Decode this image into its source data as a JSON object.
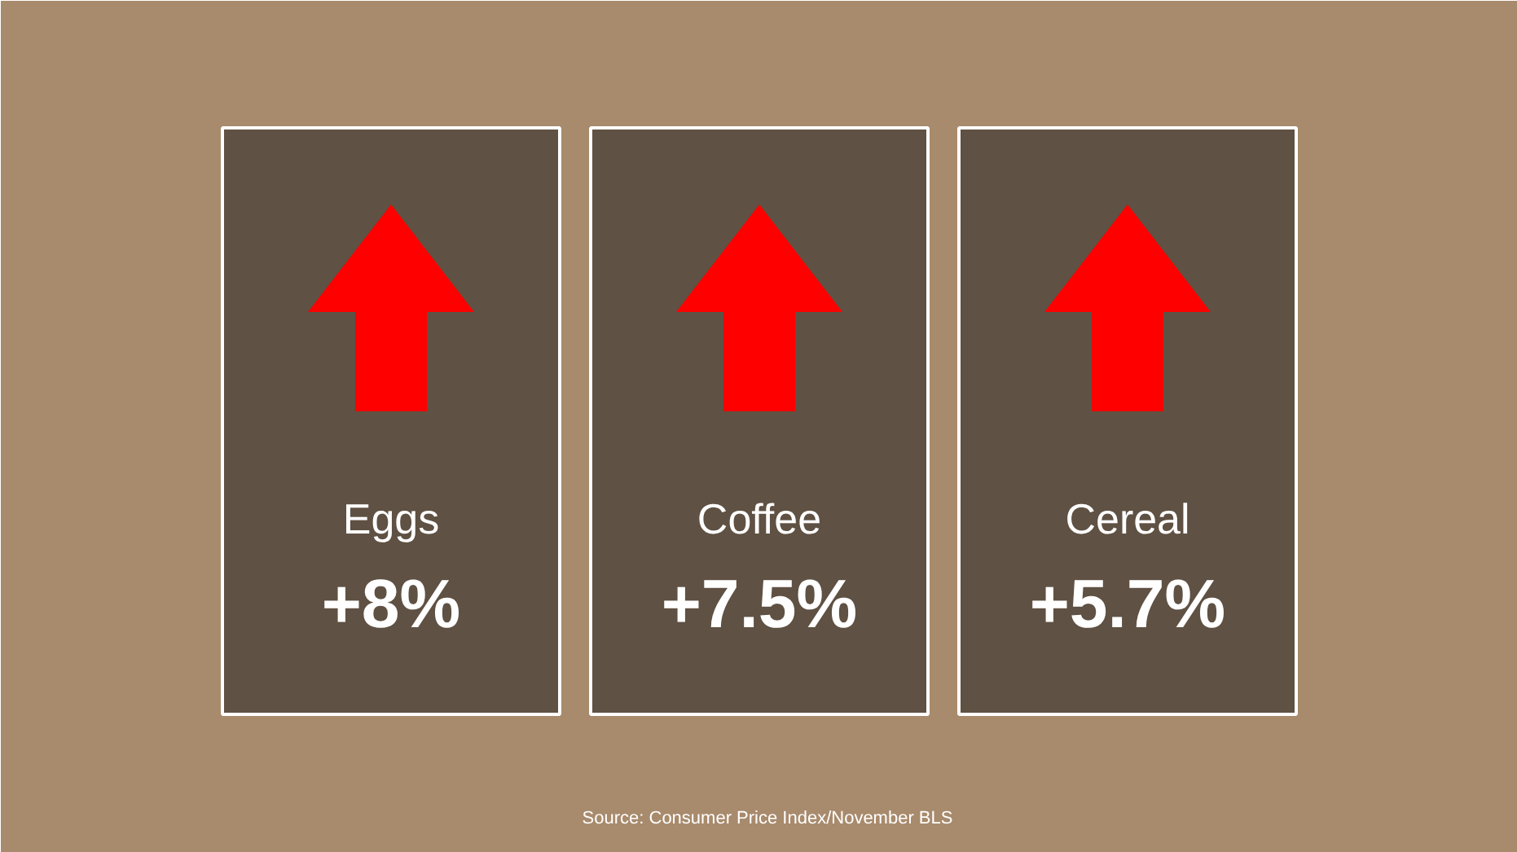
{
  "chart_data": {
    "type": "other",
    "categories": [
      "Eggs",
      "Coffee",
      "Cereal"
    ],
    "values": [
      8,
      7.5,
      5.7
    ],
    "value_labels": [
      "+8%",
      "+7.5%",
      "+5.7%"
    ],
    "annotations": [
      "Source: Consumer Price Index/November BLS"
    ]
  }
}
